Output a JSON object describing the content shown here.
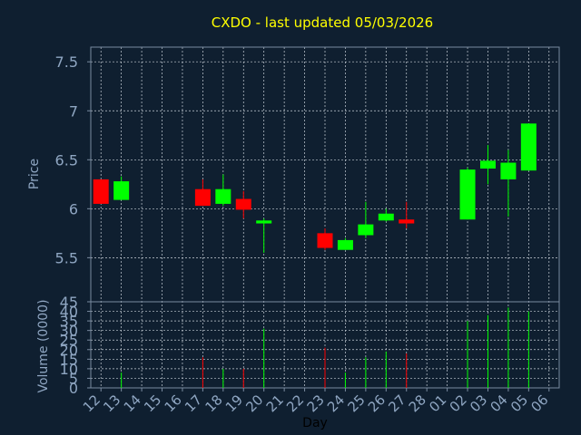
{
  "chart_data": {
    "type": "candlestick",
    "title": "CXDO - last updated 05/03/2026",
    "xlabel": "Day",
    "price_panel": {
      "ylabel": "Price",
      "ylim": [
        5.05,
        7.65
      ],
      "yticks": [
        "7.5",
        "7",
        "6.5",
        "6",
        "5.5"
      ],
      "ytick_values": [
        7.5,
        7.0,
        6.5,
        6.0,
        5.5
      ]
    },
    "volume_panel": {
      "ylabel": "Volume (0000)",
      "ylim": [
        0,
        45
      ],
      "yticks": [
        "45",
        "40",
        "35",
        "30",
        "25",
        "20",
        "15",
        "10",
        "5",
        "0"
      ],
      "ytick_values": [
        45,
        40,
        35,
        30,
        25,
        20,
        15,
        10,
        5,
        0
      ]
    },
    "x_ticks": [
      "12",
      "13",
      "14",
      "15",
      "16",
      "17",
      "18",
      "19",
      "20",
      "21",
      "22",
      "23",
      "24",
      "25",
      "26",
      "27",
      "28",
      "01",
      "02",
      "03",
      "04",
      "05",
      "06"
    ],
    "candles": [
      {
        "day": "12",
        "open": 6.3,
        "close": 6.05,
        "high": 6.3,
        "low": 6.05,
        "volume": 0
      },
      {
        "day": "13",
        "open": 6.09,
        "close": 6.28,
        "high": 6.33,
        "low": 6.09,
        "volume": 8
      },
      {
        "day": "17",
        "open": 6.2,
        "close": 6.03,
        "high": 6.3,
        "low": 6.03,
        "volume": 16
      },
      {
        "day": "18",
        "open": 6.05,
        "close": 6.2,
        "high": 6.35,
        "low": 6.03,
        "volume": 10
      },
      {
        "day": "19",
        "open": 6.1,
        "close": 5.99,
        "high": 6.18,
        "low": 5.9,
        "volume": 10
      },
      {
        "day": "20",
        "open": 5.85,
        "close": 5.88,
        "high": 5.9,
        "low": 5.55,
        "volume": 31
      },
      {
        "day": "23",
        "open": 5.75,
        "close": 5.6,
        "high": 5.8,
        "low": 5.58,
        "volume": 21
      },
      {
        "day": "24",
        "open": 5.58,
        "close": 5.68,
        "high": 5.7,
        "low": 5.58,
        "volume": 8
      },
      {
        "day": "25",
        "open": 5.73,
        "close": 5.84,
        "high": 6.07,
        "low": 5.7,
        "volume": 16
      },
      {
        "day": "26",
        "open": 5.88,
        "close": 5.95,
        "high": 6.0,
        "low": 5.87,
        "volume": 19
      },
      {
        "day": "27",
        "open": 5.89,
        "close": 5.85,
        "high": 6.07,
        "low": 5.8,
        "volume": 18
      },
      {
        "day": "02",
        "open": 5.89,
        "close": 6.4,
        "high": 6.42,
        "low": 5.89,
        "volume": 35
      },
      {
        "day": "03",
        "open": 6.41,
        "close": 6.49,
        "high": 6.65,
        "low": 6.25,
        "volume": 38
      },
      {
        "day": "04",
        "open": 6.3,
        "close": 6.47,
        "high": 6.6,
        "low": 5.92,
        "volume": 42
      },
      {
        "day": "05",
        "open": 6.39,
        "close": 6.87,
        "high": 6.87,
        "low": 6.39,
        "volume": 40
      }
    ]
  },
  "colors": {
    "background": "#0f1f30",
    "axis": "#7a8ba0",
    "grid": "#c8d0d8",
    "title": "#ffff00",
    "label": "#8fa6c2",
    "up": "#00ff00",
    "down": "#ff0000"
  }
}
